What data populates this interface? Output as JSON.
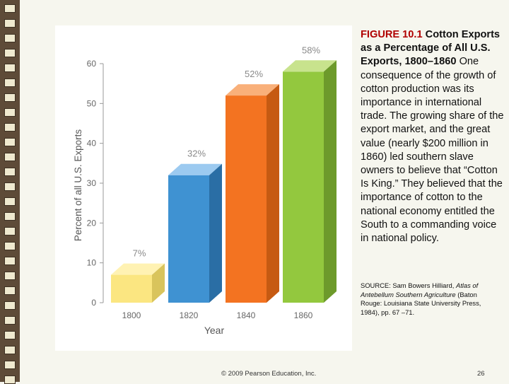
{
  "chart_data": {
    "type": "bar",
    "categories": [
      "1800",
      "1820",
      "1840",
      "1860"
    ],
    "values": [
      7,
      32,
      52,
      58
    ],
    "data_labels": [
      "7%",
      "32%",
      "52%",
      "58%"
    ],
    "yticks": [
      0,
      10,
      20,
      30,
      40,
      50,
      60
    ],
    "ylim": [
      0,
      60
    ],
    "xlabel": "Year",
    "ylabel": "Percent of all U.S. Exports",
    "grid": false,
    "colors": {
      "1800": {
        "front": "#fbe681",
        "top": "#fff2b3",
        "side": "#d9c45c"
      },
      "1820": {
        "front": "#3f92d2",
        "top": "#9ccaf0",
        "side": "#2a6ea5"
      },
      "1840": {
        "front": "#f37321",
        "top": "#f9b07a",
        "side": "#c65a12"
      },
      "1860": {
        "front": "#93c83e",
        "top": "#c8e38d",
        "side": "#6d9a2b"
      }
    },
    "label_color": "#8a8a8a"
  },
  "caption": {
    "figure_label": "FIGURE 10.1",
    "title": "Cotton Exports as a Percentage of All U.S. Exports, 1800–1860",
    "body": "One consequence of the growth of cotton production was its importance in international trade. The growing share of the export market, and the great value (nearly $200 million in 1860) led southern slave owners to believe that “Cotton Is King.” They believed that the importance of cotton to the national economy entitled the South to a commanding voice in national policy."
  },
  "source": {
    "prefix": "SOURCE: Sam Bowers Hilliard, ",
    "book_title": "Atlas of Antebellum Southern Agriculture",
    "suffix": " (Baton Rouge: Louisiana State University Press, 1984), pp. 67 –71."
  },
  "footer": {
    "copyright": "© 2009 Pearson Education, Inc.",
    "page_number": "26"
  }
}
